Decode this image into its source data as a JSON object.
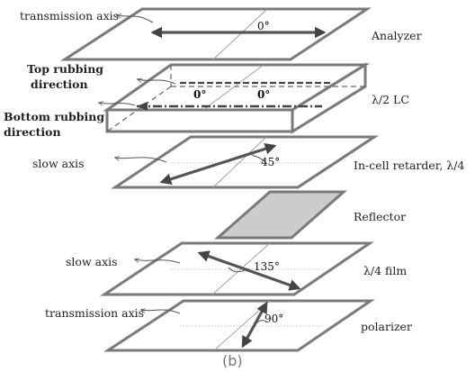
{
  "layers": {
    "analyzer": {
      "name": "Analyzer",
      "axis_label": "transmission axis",
      "angle": "0°"
    },
    "lc": {
      "name": "λ/2 LC",
      "top_label_1": "Top rubbing",
      "top_label_2": "direction",
      "bottom_label_1": "Bottom rubbing",
      "bottom_label_2": "direction",
      "angle_left": "0°",
      "angle_right": "0°"
    },
    "retarder": {
      "name": "In-cell retarder, λ/4",
      "axis_label": "slow axis",
      "angle": "45°"
    },
    "reflector": {
      "name": "Reflector",
      "fill": "#cccccc"
    },
    "film": {
      "name": "λ/4 film",
      "axis_label": "slow axis",
      "angle": "135°"
    },
    "polarizer": {
      "name": "polarizer",
      "axis_label": "transmission axis",
      "angle": "90°"
    }
  },
  "caption": "(b)"
}
